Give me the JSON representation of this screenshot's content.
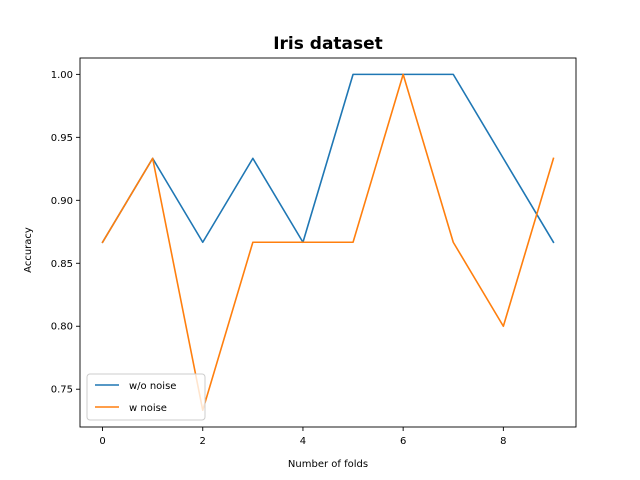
{
  "chart_data": {
    "type": "line",
    "title": "Iris dataset",
    "xlabel": "Number of folds",
    "ylabel": "Accuracy",
    "x": [
      0,
      1,
      2,
      3,
      4,
      5,
      6,
      7,
      8,
      9
    ],
    "xlim": [
      -0.45,
      9.45
    ],
    "ylim": [
      0.72,
      1.013
    ],
    "xticks": [
      0,
      2,
      4,
      6,
      8
    ],
    "yticks": [
      0.75,
      0.8,
      0.85,
      0.9,
      0.95,
      1.0
    ],
    "xtick_labels": [
      "0",
      "2",
      "4",
      "6",
      "8"
    ],
    "ytick_labels": [
      "0.75",
      "0.80",
      "0.85",
      "0.90",
      "0.95",
      "1.00"
    ],
    "grid": false,
    "legend_position": "lower-left",
    "series": [
      {
        "name": "w/o noise",
        "color": "#1f77b4",
        "values": [
          0.8667,
          0.9333,
          0.8667,
          0.9333,
          0.8667,
          1.0,
          1.0,
          1.0,
          0.9333,
          0.8667
        ]
      },
      {
        "name": "w noise",
        "color": "#ff7f0e",
        "values": [
          0.8667,
          0.9333,
          0.7333,
          0.8667,
          0.8667,
          0.8667,
          1.0,
          0.8667,
          0.8,
          0.9333
        ]
      }
    ]
  }
}
